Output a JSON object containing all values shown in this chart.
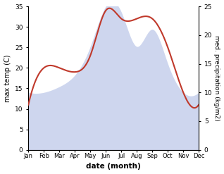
{
  "months": [
    "Jan",
    "Feb",
    "Mar",
    "Apr",
    "May",
    "Jun",
    "Jul",
    "Aug",
    "Sep",
    "Oct",
    "Nov",
    "Dec"
  ],
  "temperature": [
    11,
    20,
    20,
    19,
    23,
    34,
    32,
    32,
    32,
    25,
    14,
    11
  ],
  "precipitation": [
    10,
    10,
    11,
    13,
    18,
    25,
    24,
    18,
    21,
    15,
    10,
    10
  ],
  "temp_color": "#c0392b",
  "precip_fill_color": "#b8c4e8",
  "temp_ylim": [
    0,
    35
  ],
  "precip_ylim": [
    0,
    25
  ],
  "temp_yticks": [
    0,
    5,
    10,
    15,
    20,
    25,
    30,
    35
  ],
  "precip_yticks": [
    0,
    5,
    10,
    15,
    20,
    25
  ],
  "xlabel": "date (month)",
  "ylabel_left": "max temp (C)",
  "ylabel_right": "med. precipitation (kg/m2)",
  "bg_color": "#ffffff",
  "line_width": 1.5,
  "fill_alpha": 0.55
}
